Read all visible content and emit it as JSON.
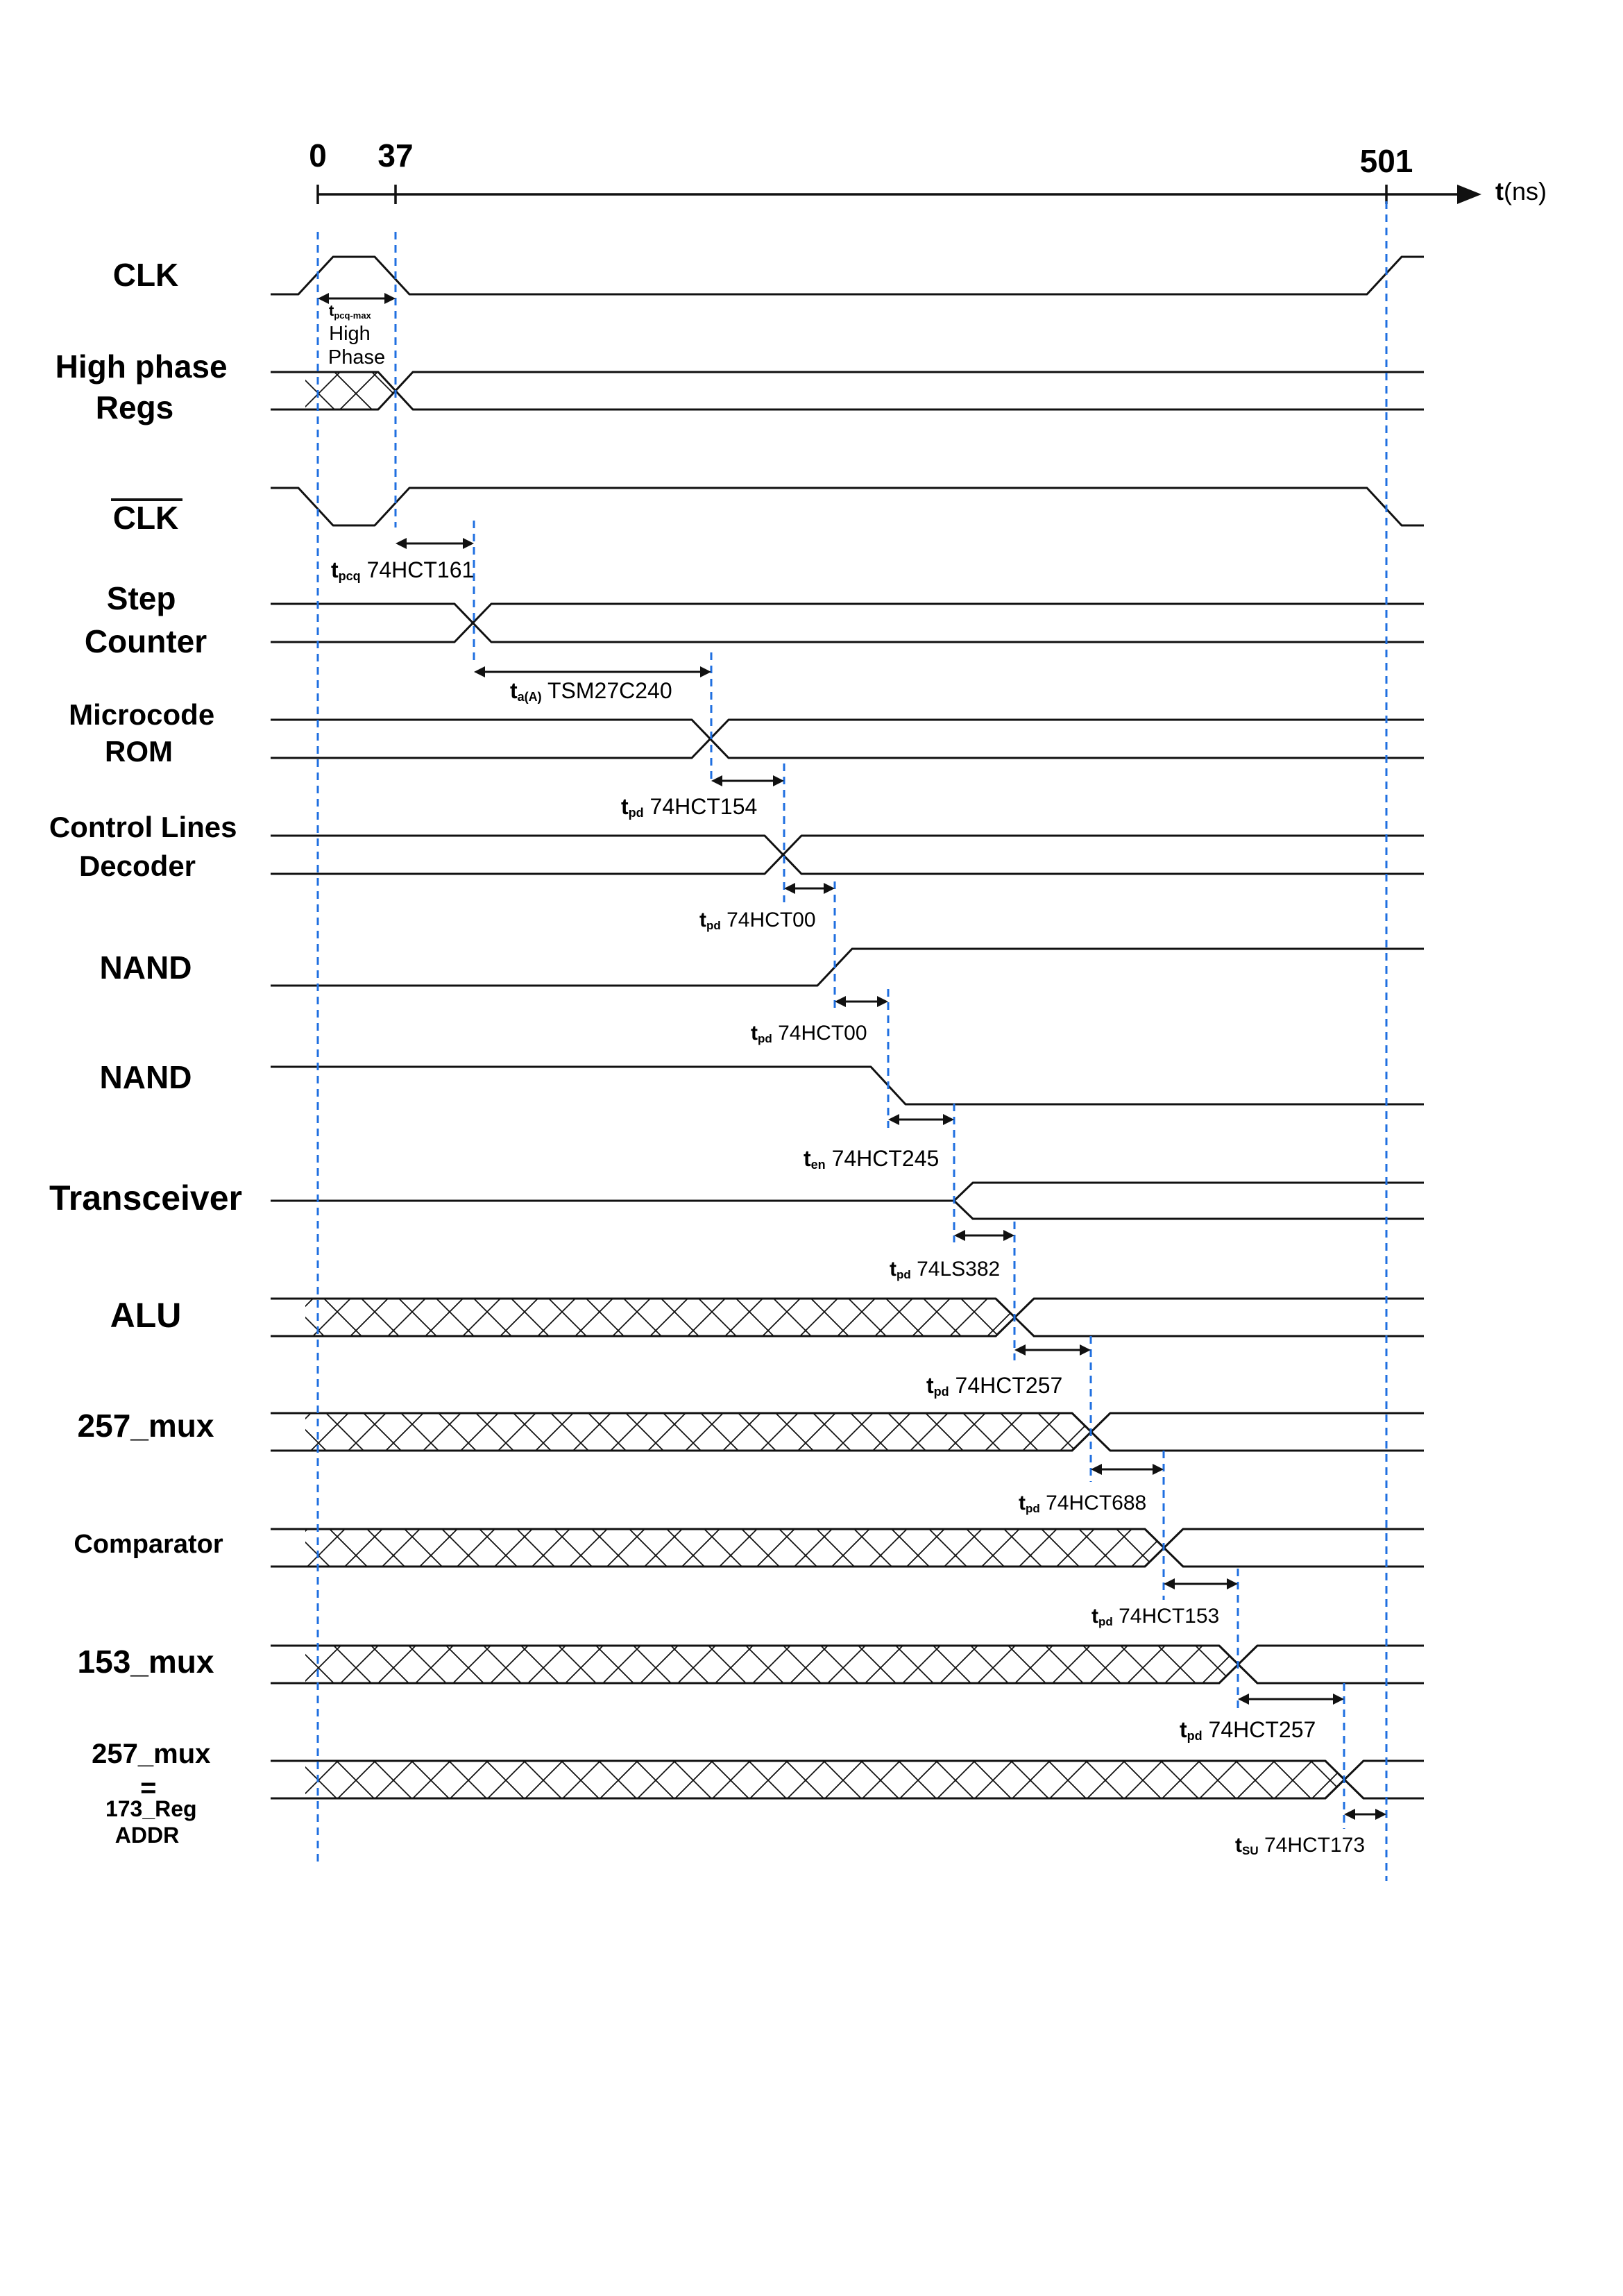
{
  "timeline": {
    "marks": [
      {
        "value": "0",
        "t": 0
      },
      {
        "value": "37",
        "t": 37
      },
      {
        "value": "501",
        "t": 501
      }
    ],
    "axis_label": {
      "main": "t",
      "unit": "(ns)"
    }
  },
  "signals": [
    {
      "id": "clk",
      "lines": [
        "CLK"
      ]
    },
    {
      "id": "high-phase-regs",
      "lines": [
        "High phase",
        "Regs"
      ]
    },
    {
      "id": "clk-bar",
      "lines": [
        "CLK"
      ],
      "overline": true
    },
    {
      "id": "step-counter",
      "lines": [
        "Step",
        "Counter"
      ]
    },
    {
      "id": "microcode-rom",
      "lines": [
        "Microcode",
        "ROM"
      ]
    },
    {
      "id": "control-lines-decoder",
      "lines": [
        "Control Lines",
        "Decoder"
      ]
    },
    {
      "id": "nand-1",
      "lines": [
        "NAND"
      ]
    },
    {
      "id": "nand-2",
      "lines": [
        "NAND"
      ]
    },
    {
      "id": "transceiver",
      "lines": [
        "Transceiver"
      ]
    },
    {
      "id": "alu",
      "lines": [
        "ALU"
      ]
    },
    {
      "id": "mux-257",
      "lines": [
        "257_mux"
      ]
    },
    {
      "id": "comparator",
      "lines": [
        "Comparator"
      ]
    },
    {
      "id": "mux-153",
      "lines": [
        "153_mux"
      ]
    },
    {
      "id": "reg-addr",
      "lines": [
        "257_mux",
        "=",
        "173_Reg",
        "ADDR"
      ]
    }
  ],
  "annotations": [
    {
      "id": "tpcq-max",
      "sym": "t",
      "sub": "pcq-max",
      "text": "",
      "extra": [
        "High",
        "Phase"
      ]
    },
    {
      "id": "tpcq-161",
      "sym": "t",
      "sub": "pcq",
      "text": " 74HCT161"
    },
    {
      "id": "ta-27c240",
      "sym": "t",
      "sub": "a(A)",
      "text": " TSM27C240"
    },
    {
      "id": "tpd-154",
      "sym": "t",
      "sub": "pd",
      "text": " 74HCT154"
    },
    {
      "id": "tpd-00-a",
      "sym": "t",
      "sub": "pd",
      "text": " 74HCT00"
    },
    {
      "id": "tpd-00-b",
      "sym": "t",
      "sub": "pd",
      "text": " 74HCT00"
    },
    {
      "id": "ten-245",
      "sym": "t",
      "sub": "en",
      "text": " 74HCT245"
    },
    {
      "id": "tpd-382",
      "sym": "t",
      "sub": "pd",
      "text": " 74LS382"
    },
    {
      "id": "tpd-257-a",
      "sym": "t",
      "sub": "pd",
      "text": " 74HCT257"
    },
    {
      "id": "tpd-688",
      "sym": "t",
      "sub": "pd",
      "text": " 74HCT688"
    },
    {
      "id": "tpd-153",
      "sym": "t",
      "sub": "pd",
      "text": " 74HCT153"
    },
    {
      "id": "tpd-257-b",
      "sym": "t",
      "sub": "pd",
      "text": " 74HCT257"
    },
    {
      "id": "tsu-173",
      "sym": "t",
      "sub": "SU",
      "text": " 74HCT173"
    }
  ]
}
